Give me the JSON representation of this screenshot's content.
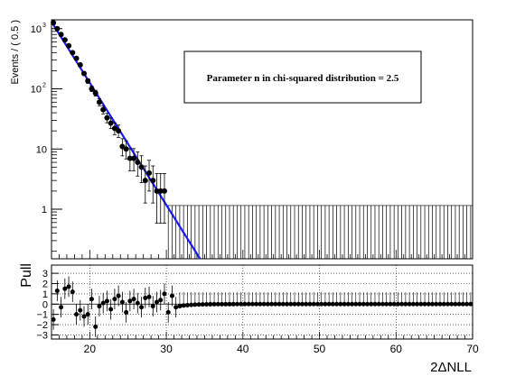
{
  "chart_data": [
    {
      "type": "scatter",
      "panel": "main",
      "ylabel": "Events / ( 0.5 )",
      "xlim": [
        15,
        70
      ],
      "ylim": [
        0.15,
        1400
      ],
      "yscale": "log",
      "yticks": [
        {
          "value": 1,
          "label": "1"
        },
        {
          "value": 10,
          "label": "10"
        },
        {
          "value": 100,
          "label": "10",
          "exp": "2"
        },
        {
          "value": 1000,
          "label": "10",
          "exp": "3"
        }
      ],
      "legend_text": "Parameter n in chi-squared distribution = 2.5",
      "legend_placement": "top-right",
      "fit_line": {
        "color": "#1a1aff",
        "x": [
          15,
          34.4
        ],
        "y": [
          1300,
          0.15
        ]
      },
      "series": [
        {
          "x": [
            15.25,
            15.75,
            16.25,
            16.75,
            17.25,
            17.75,
            18.25,
            18.75,
            19.25,
            19.75,
            20.25,
            20.75,
            21.25,
            21.75,
            22.25,
            22.75,
            23.25,
            23.75,
            24.25,
            24.75,
            25.25,
            25.75,
            26.25,
            26.75,
            27.25,
            27.75,
            28.25,
            28.75,
            29.25,
            29.75
          ],
          "y": [
            1250,
            1000,
            800,
            650,
            520,
            400,
            320,
            250,
            180,
            135,
            100,
            85,
            60,
            45,
            33,
            27,
            22,
            20,
            11,
            10,
            7,
            7,
            6,
            5,
            3,
            4,
            3,
            2,
            2,
            2
          ]
        }
      ],
      "empty_bin_error_top": 1.15,
      "empty_bin_range": [
        30,
        70
      ]
    },
    {
      "type": "scatter",
      "panel": "pull",
      "xlabel": "2ΔNLL",
      "ylabel": "Pull",
      "xlim": [
        15,
        70
      ],
      "ylim": [
        -3.4,
        3.8
      ],
      "xticks": [
        20,
        30,
        40,
        50,
        60,
        70
      ],
      "yticks": [
        -3,
        -2,
        -1,
        0,
        1,
        2,
        3
      ],
      "grid": true,
      "series": [
        {
          "x": [
            15.25,
            15.75,
            16.25,
            16.75,
            17.25,
            17.75,
            18.25,
            18.75,
            19.25,
            19.75,
            20.25,
            20.75,
            21.25,
            21.75,
            22.25,
            22.75,
            23.25,
            23.75,
            24.25,
            24.75,
            25.25,
            25.75,
            26.25,
            26.75,
            27.25,
            27.75,
            28.25,
            28.75,
            29.25,
            29.75,
            30.25,
            30.75,
            31.25
          ],
          "y": [
            -1.5,
            1.3,
            -0.3,
            1.5,
            1.7,
            1.2,
            -1.0,
            -0.6,
            -1.2,
            -1.0,
            0.5,
            -2.2,
            -0.2,
            0.1,
            0.3,
            -0.5,
            0.5,
            0.8,
            0.2,
            -0.8,
            0.3,
            0.5,
            0.1,
            -0.3,
            0.6,
            0.7,
            -0.2,
            0.2,
            0.4,
            1.0,
            -0.8,
            0.8,
            -0.3
          ]
        }
      ]
    }
  ]
}
